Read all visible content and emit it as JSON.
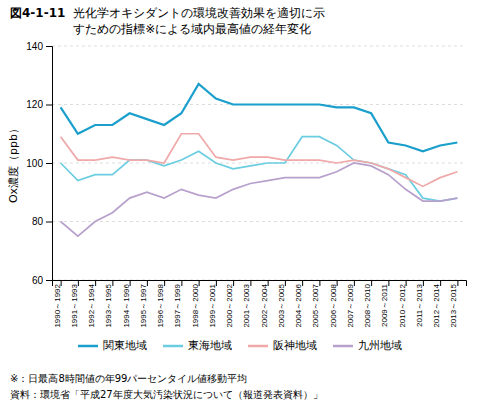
{
  "chart_data": {
    "type": "line",
    "title": "図4-1-11",
    "subtitle": [
      "光化学オキシダントの環境改善効果を適切に示",
      "すための指標※による域内最高値の経年変化"
    ],
    "y_label": "Ox濃度（ppb）",
    "categories": [
      "1990～1992",
      "1991～1993",
      "1992～1994",
      "1993～1995",
      "1994～1996",
      "1995～1997",
      "1996～1998",
      "1997～1999",
      "1998～2000",
      "1999～2001",
      "2000～2002",
      "2001～2003",
      "2002～2004",
      "2003～2005",
      "2004～2006",
      "2005～2007",
      "2006～2008",
      "2007～2009",
      "2008～2010",
      "2009～2011",
      "2010～2012",
      "2011～2013",
      "2012～2014",
      "2013～2015"
    ],
    "series": [
      {
        "name": "関東地域",
        "color": "#1a9fcc",
        "values": [
          119,
          110,
          113,
          113,
          117,
          115,
          113,
          117,
          127,
          122,
          120,
          120,
          120,
          120,
          120,
          120,
          119,
          119,
          117,
          107,
          106,
          104,
          106,
          107
        ]
      },
      {
        "name": "東海地域",
        "color": "#6acde0",
        "values": [
          100,
          94,
          96,
          96,
          101,
          101,
          99,
          101,
          104,
          100,
          98,
          99,
          100,
          100,
          109,
          109,
          106,
          101,
          100,
          98,
          96,
          88,
          87,
          88
        ]
      },
      {
        "name": "阪神地域",
        "color": "#f0a8a8",
        "values": [
          109,
          101,
          101,
          102,
          101,
          101,
          100,
          110,
          110,
          102,
          101,
          102,
          102,
          101,
          101,
          101,
          100,
          101,
          100,
          98,
          95,
          92,
          95,
          97
        ]
      },
      {
        "name": "九州地域",
        "color": "#b8a0cc",
        "values": [
          80,
          75,
          80,
          83,
          88,
          90,
          88,
          91,
          89,
          88,
          91,
          93,
          94,
          95,
          95,
          95,
          97,
          100,
          99,
          96,
          91,
          87,
          87,
          88
        ]
      }
    ],
    "ylim": [
      60,
      140
    ],
    "yticks": [
      60,
      80,
      100,
      120,
      140
    ],
    "grid": true,
    "legend": "bottom",
    "annotations": [
      "※：日最高8時間値の年99パーセンタイル値移動平均",
      "資料：環境省「平成27年度大気汚染状況について（報道発表資料）」"
    ]
  }
}
